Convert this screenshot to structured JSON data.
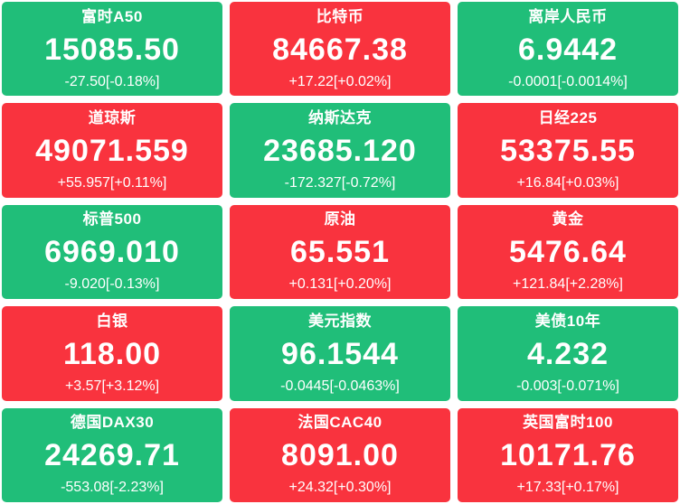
{
  "colors": {
    "up": "#f9333e",
    "down": "#20be79",
    "text": "#ffffff",
    "page_background": "#ffffff"
  },
  "tiles": [
    {
      "name": "富时A50",
      "value": "15085.50",
      "change": "-27.50[-0.18%]",
      "direction": "down"
    },
    {
      "name": "比特币",
      "value": "84667.38",
      "change": "+17.22[+0.02%]",
      "direction": "up"
    },
    {
      "name": "离岸人民币",
      "value": "6.9442",
      "change": "-0.0001[-0.0014%]",
      "direction": "down"
    },
    {
      "name": "道琼斯",
      "value": "49071.559",
      "change": "+55.957[+0.11%]",
      "direction": "up"
    },
    {
      "name": "纳斯达克",
      "value": "23685.120",
      "change": "-172.327[-0.72%]",
      "direction": "down"
    },
    {
      "name": "日经225",
      "value": "53375.55",
      "change": "+16.84[+0.03%]",
      "direction": "up"
    },
    {
      "name": "标普500",
      "value": "6969.010",
      "change": "-9.020[-0.13%]",
      "direction": "down"
    },
    {
      "name": "原油",
      "value": "65.551",
      "change": "+0.131[+0.20%]",
      "direction": "up"
    },
    {
      "name": "黄金",
      "value": "5476.64",
      "change": "+121.84[+2.28%]",
      "direction": "up"
    },
    {
      "name": "白银",
      "value": "118.00",
      "change": "+3.57[+3.12%]",
      "direction": "up"
    },
    {
      "name": "美元指数",
      "value": "96.1544",
      "change": "-0.0445[-0.0463%]",
      "direction": "down"
    },
    {
      "name": "美债10年",
      "value": "4.232",
      "change": "-0.003[-0.071%]",
      "direction": "down"
    },
    {
      "name": "德国DAX30",
      "value": "24269.71",
      "change": "-553.08[-2.23%]",
      "direction": "down"
    },
    {
      "name": "法国CAC40",
      "value": "8091.00",
      "change": "+24.32[+0.30%]",
      "direction": "up"
    },
    {
      "name": "英国富时100",
      "value": "10171.76",
      "change": "+17.33[+0.17%]",
      "direction": "up"
    }
  ]
}
